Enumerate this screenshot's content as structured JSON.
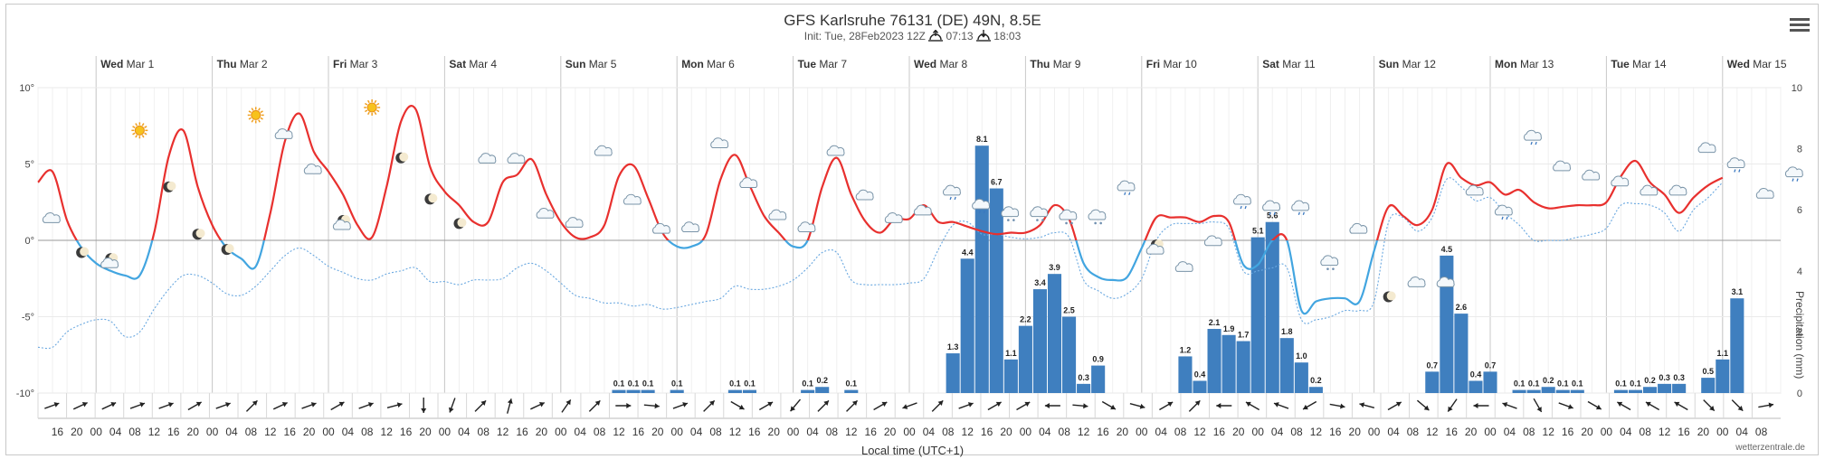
{
  "header": {
    "title": "GFS Karlsruhe 76131 (DE) 49N, 8.5E",
    "init": "Init: Tue, 28Feb2023 12Z",
    "sunrise": "07:13",
    "sunset": "18:03",
    "menu_icon": "hamburger-menu-icon"
  },
  "footer": {
    "xlabel": "Local time (UTC+1)",
    "credit": "wetterzentrale.de"
  },
  "chart_data": {
    "type": "line",
    "xlabel": "Local time (UTC+1)",
    "ylabel_right": "Precipitation (mm)",
    "day_labels": [
      {
        "day": "Wed",
        "date": "Mar 1"
      },
      {
        "day": "Thu",
        "date": "Mar 2"
      },
      {
        "day": "Fri",
        "date": "Mar 3"
      },
      {
        "day": "Sat",
        "date": "Mar 4"
      },
      {
        "day": "Sun",
        "date": "Mar 5"
      },
      {
        "day": "Mon",
        "date": "Mar 6"
      },
      {
        "day": "Tue",
        "date": "Mar 7"
      },
      {
        "day": "Wed",
        "date": "Mar 8"
      },
      {
        "day": "Thu",
        "date": "Mar 9"
      },
      {
        "day": "Fri",
        "date": "Mar 10"
      },
      {
        "day": "Sat",
        "date": "Mar 11"
      },
      {
        "day": "Sun",
        "date": "Mar 12"
      },
      {
        "day": "Mon",
        "date": "Mar 13"
      },
      {
        "day": "Tue",
        "date": "Mar 14"
      },
      {
        "day": "Wed",
        "date": "Mar 15"
      }
    ],
    "hour_ticks": [
      "16",
      "20",
      "00",
      "04",
      "08",
      "12",
      "16",
      "20",
      "00",
      "04",
      "08",
      "12",
      "16",
      "20",
      "00",
      "04",
      "08",
      "12",
      "16",
      "20",
      "00",
      "04",
      "08",
      "12",
      "16",
      "20",
      "00",
      "04",
      "08",
      "12",
      "16",
      "20",
      "00",
      "04",
      "08",
      "12",
      "16",
      "20",
      "00",
      "04",
      "08",
      "12",
      "16",
      "20",
      "00",
      "04",
      "08",
      "12",
      "16",
      "20",
      "00",
      "04",
      "08",
      "12",
      "16",
      "20",
      "00",
      "04",
      "08",
      "12",
      "16",
      "20",
      "00",
      "04",
      "08",
      "12",
      "16",
      "20",
      "00",
      "04",
      "08",
      "12",
      "16",
      "20",
      "00",
      "04",
      "08",
      "12",
      "16",
      "20",
      "00",
      "04",
      "08",
      "12",
      "16",
      "20",
      "00",
      "04",
      "08"
    ],
    "y_ticks_left": [
      "10°",
      "5°",
      "0°",
      "-5°",
      "-10°"
    ],
    "y_ticks_right": [
      "10",
      "8",
      "6",
      "4",
      "2",
      "0"
    ],
    "ylim_temp": [
      -10,
      10
    ],
    "ylim_precip": [
      0,
      10
    ],
    "x_start_hour": 12,
    "x_step_hours": 3,
    "series": [
      {
        "name": "",
        "kind": "temperature",
        "color": "#e8302e",
        "values": [
          3.8,
          4.5,
          1.3,
          -0.5,
          -1.5,
          -2.0,
          -2.3,
          -2.3,
          0.5,
          5.5,
          7.2,
          3.5,
          1.0,
          -0.5,
          -1.2,
          -1.7,
          1.8,
          6.5,
          8.3,
          5.8,
          4.5,
          3.0,
          1.0,
          0.2,
          3.5,
          7.8,
          8.6,
          4.8,
          3.2,
          2.3,
          1.2,
          1.2,
          3.8,
          4.3,
          5.3,
          3.0,
          1.2,
          0.2,
          0.2,
          1.0,
          4.2,
          4.9,
          2.8,
          0.5,
          -0.4,
          -0.4,
          0.4,
          4.0,
          5.6,
          3.6,
          1.6,
          0.5,
          -0.4,
          0.0,
          3.5,
          5.4,
          3.0,
          1.2,
          0.5,
          1.4,
          1.4,
          2.3,
          1.2,
          1.2,
          0.9,
          0.6,
          0.4,
          0.5,
          0.5,
          1.0,
          2.3,
          1.4,
          -1.5,
          -2.4,
          -2.6,
          -2.4,
          -0.5,
          1.5,
          1.5,
          1.5,
          1.2,
          1.6,
          1.2,
          -1.6,
          -1.6,
          0.0,
          0.0,
          -4.6,
          -4.0,
          -3.8,
          -3.8,
          -4.0,
          -0.7,
          2.2,
          1.6,
          1.0,
          2.0,
          5.0,
          4.1,
          3.6,
          3.8,
          3.0,
          3.3,
          2.5,
          2.1,
          2.2,
          2.3,
          2.3,
          2.5,
          4.2,
          5.2,
          3.8,
          3.0,
          1.8,
          2.8,
          3.6,
          4.1
        ]
      },
      {
        "name": "",
        "kind": "temperature_below_zero",
        "color": "#42a5e0"
      },
      {
        "name": "",
        "kind": "dewpoint",
        "color": "#6aa8e0",
        "style": "dotted",
        "values": [
          -7.0,
          -7.0,
          -6.0,
          -5.5,
          -5.2,
          -5.3,
          -6.3,
          -6.0,
          -4.5,
          -3.2,
          -2.3,
          -2.3,
          -2.8,
          -3.5,
          -3.6,
          -3.0,
          -2.0,
          -1.0,
          -0.5,
          -1.0,
          -1.7,
          -2.1,
          -2.5,
          -2.6,
          -2.2,
          -2.0,
          -1.8,
          -2.7,
          -2.7,
          -2.9,
          -2.6,
          -2.6,
          -2.5,
          -1.8,
          -1.5,
          -2.0,
          -2.8,
          -3.6,
          -3.8,
          -4.1,
          -4.1,
          -4.3,
          -4.2,
          -4.5,
          -4.4,
          -4.2,
          -4.0,
          -3.8,
          -3.0,
          -3.2,
          -3.2,
          -3.0,
          -2.6,
          -1.8,
          -0.8,
          -0.8,
          -2.6,
          -2.9,
          -2.9,
          -2.9,
          -2.8,
          -2.5,
          -0.6,
          1.0,
          1.2,
          0.4,
          0.4,
          0.2,
          0.1,
          0.2,
          0.5,
          0.2,
          -2.6,
          -3.3,
          -3.8,
          -3.5,
          -2.5,
          0.0,
          1.0,
          1.1,
          1.1,
          1.2,
          0.8,
          -2.0,
          -2.0,
          -1.8,
          -1.8,
          -5.2,
          -5.2,
          -5.0,
          -4.6,
          -4.6,
          -4.0,
          1.2,
          1.5,
          0.6,
          1.5,
          4.0,
          3.5,
          2.6,
          2.8,
          1.8,
          1.0,
          0.0,
          0.0,
          0.0,
          0.2,
          0.4,
          0.8,
          2.3,
          2.4,
          2.3,
          1.8,
          0.6,
          2.0,
          2.8,
          3.8
        ]
      },
      {
        "name": "",
        "kind": "precipitation_bars",
        "color": "#3f7fbf",
        "bars": [
          {
            "i": 40,
            "v": 0.1
          },
          {
            "i": 41,
            "v": 0.1
          },
          {
            "i": 42,
            "v": 0.1
          },
          {
            "i": 44,
            "v": 0.1
          },
          {
            "i": 48,
            "v": 0.1
          },
          {
            "i": 49,
            "v": 0.1
          },
          {
            "i": 53,
            "v": 0.1
          },
          {
            "i": 54,
            "v": 0.2
          },
          {
            "i": 56,
            "v": 0.1
          },
          {
            "i": 63,
            "v": 1.3
          },
          {
            "i": 64,
            "v": 4.4
          },
          {
            "i": 65,
            "v": 8.1
          },
          {
            "i": 66,
            "v": 6.7
          },
          {
            "i": 67,
            "v": 1.1
          },
          {
            "i": 68,
            "v": 2.2
          },
          {
            "i": 69,
            "v": 3.4
          },
          {
            "i": 70,
            "v": 3.9
          },
          {
            "i": 71,
            "v": 2.5
          },
          {
            "i": 72,
            "v": 0.3
          },
          {
            "i": 73,
            "v": 0.9
          },
          {
            "i": 79,
            "v": 1.2
          },
          {
            "i": 80,
            "v": 0.4
          },
          {
            "i": 81,
            "v": 2.1
          },
          {
            "i": 82,
            "v": 1.9
          },
          {
            "i": 83,
            "v": 1.7
          },
          {
            "i": 84,
            "v": 5.1
          },
          {
            "i": 85,
            "v": 5.6
          },
          {
            "i": 86,
            "v": 1.8
          },
          {
            "i": 87,
            "v": 1.0
          },
          {
            "i": 88,
            "v": 0.2
          },
          {
            "i": 96,
            "v": 0.7
          },
          {
            "i": 97,
            "v": 4.5
          },
          {
            "i": 98,
            "v": 2.6
          },
          {
            "i": 99,
            "v": 0.4
          },
          {
            "i": 100,
            "v": 0.7
          },
          {
            "i": 102,
            "v": 0.1
          },
          {
            "i": 103,
            "v": 0.1
          },
          {
            "i": 104,
            "v": 0.2
          },
          {
            "i": 105,
            "v": 0.1
          },
          {
            "i": 106,
            "v": 0.1
          },
          {
            "i": 109,
            "v": 0.1
          },
          {
            "i": 110,
            "v": 0.1
          },
          {
            "i": 111,
            "v": 0.2
          },
          {
            "i": 112,
            "v": 0.3
          },
          {
            "i": 113,
            "v": 0.3
          },
          {
            "i": 115,
            "v": 0.5
          },
          {
            "i": 116,
            "v": 1.1
          },
          {
            "i": 117,
            "v": 3.1
          }
        ]
      }
    ],
    "weather_icons": [
      {
        "i": 1,
        "icon": "cloud-icon",
        "y": 1.4
      },
      {
        "i": 3,
        "icon": "moon-icon",
        "y": -0.8
      },
      {
        "i": 5,
        "icon": "moon-cloud-icon",
        "y": -1.2
      },
      {
        "i": 7,
        "icon": "sun-icon",
        "y": 7.2
      },
      {
        "i": 9,
        "icon": "moon-icon",
        "y": 3.5
      },
      {
        "i": 11,
        "icon": "moon-icon",
        "y": 0.4
      },
      {
        "i": 13,
        "icon": "moon-icon",
        "y": -0.6
      },
      {
        "i": 15,
        "icon": "sun-icon",
        "y": 8.2
      },
      {
        "i": 17,
        "icon": "cloud-icon",
        "y": 6.9
      },
      {
        "i": 19,
        "icon": "cloud-icon",
        "y": 4.6
      },
      {
        "i": 21,
        "icon": "moon-cloud-icon",
        "y": 1.3
      },
      {
        "i": 23,
        "icon": "sun-icon",
        "y": 8.7
      },
      {
        "i": 25,
        "icon": "moon-icon",
        "y": 5.4
      },
      {
        "i": 27,
        "icon": "moon-icon",
        "y": 2.7
      },
      {
        "i": 29,
        "icon": "moon-icon",
        "y": 1.1
      },
      {
        "i": 31,
        "icon": "cloud-icon",
        "y": 5.3
      },
      {
        "i": 33,
        "icon": "cloud-icon",
        "y": 5.3
      },
      {
        "i": 35,
        "icon": "cloud-icon",
        "y": 1.7
      },
      {
        "i": 37,
        "icon": "cloud-icon",
        "y": 1.1
      },
      {
        "i": 39,
        "icon": "cloud-icon",
        "y": 5.8
      },
      {
        "i": 41,
        "icon": "cloud-icon",
        "y": 2.6
      },
      {
        "i": 43,
        "icon": "cloud-icon",
        "y": 0.7
      },
      {
        "i": 45,
        "icon": "cloud-icon",
        "y": 0.8
      },
      {
        "i": 47,
        "icon": "cloud-icon",
        "y": 6.3
      },
      {
        "i": 49,
        "icon": "cloud-icon",
        "y": 3.7
      },
      {
        "i": 51,
        "icon": "cloud-icon",
        "y": 1.6
      },
      {
        "i": 53,
        "icon": "cloud-icon",
        "y": 0.8
      },
      {
        "i": 55,
        "icon": "cloud-icon",
        "y": 5.8
      },
      {
        "i": 57,
        "icon": "cloud-icon",
        "y": 2.9
      },
      {
        "i": 59,
        "icon": "cloud-icon",
        "y": 1.4
      },
      {
        "i": 61,
        "icon": "cloud-icon",
        "y": 1.9
      },
      {
        "i": 63,
        "icon": "cloud-rain-icon",
        "y": 3.2
      },
      {
        "i": 65,
        "icon": "cloud-rain-icon",
        "y": 2.3
      },
      {
        "i": 67,
        "icon": "cloud-snow-icon",
        "y": 1.8
      },
      {
        "i": 69,
        "icon": "cloud-snow-icon",
        "y": 1.8
      },
      {
        "i": 71,
        "icon": "cloud-snow-icon",
        "y": 1.6
      },
      {
        "i": 73,
        "icon": "cloud-snow-icon",
        "y": 1.6
      },
      {
        "i": 75,
        "icon": "cloud-rain-icon",
        "y": 3.5
      },
      {
        "i": 77,
        "icon": "moon-cloud-icon",
        "y": -0.3
      },
      {
        "i": 79,
        "icon": "cloud-icon",
        "y": -1.8
      },
      {
        "i": 81,
        "icon": "cloud-icon",
        "y": -0.1
      },
      {
        "i": 83,
        "icon": "cloud-rain-icon",
        "y": 2.6
      },
      {
        "i": 85,
        "icon": "cloud-rain-icon",
        "y": 2.2
      },
      {
        "i": 87,
        "icon": "cloud-rain-icon",
        "y": 2.2
      },
      {
        "i": 89,
        "icon": "cloud-snow-icon",
        "y": -1.4
      },
      {
        "i": 91,
        "icon": "cloud-icon",
        "y": 0.7
      },
      {
        "i": 93,
        "icon": "moon-icon",
        "y": -3.7
      },
      {
        "i": 95,
        "icon": "cloud-icon",
        "y": -2.8
      },
      {
        "i": 97,
        "icon": "cloud-icon",
        "y": -2.8
      },
      {
        "i": 99,
        "icon": "cloud-icon",
        "y": 3.2
      },
      {
        "i": 101,
        "icon": "cloud-rain-icon",
        "y": 1.9
      },
      {
        "i": 103,
        "icon": "cloud-rain-icon",
        "y": 6.8
      },
      {
        "i": 105,
        "icon": "cloud-icon",
        "y": 4.8
      },
      {
        "i": 107,
        "icon": "cloud-icon",
        "y": 4.2
      },
      {
        "i": 109,
        "icon": "cloud-icon",
        "y": 3.8
      },
      {
        "i": 111,
        "icon": "cloud-icon",
        "y": 3.2
      },
      {
        "i": 113,
        "icon": "cloud-icon",
        "y": 3.2
      },
      {
        "i": 115,
        "icon": "cloud-icon",
        "y": 6.0
      },
      {
        "i": 117,
        "icon": "cloud-rain-icon",
        "y": 5.0
      },
      {
        "i": 119,
        "icon": "cloud-icon",
        "y": 3.0
      },
      {
        "i": 121,
        "icon": "cloud-rain-icon",
        "y": 4.4
      }
    ],
    "wind_arrows_deg": [
      70,
      65,
      65,
      70,
      70,
      60,
      70,
      45,
      65,
      70,
      60,
      70,
      75,
      180,
      200,
      45,
      15,
      65,
      35,
      45,
      90,
      95,
      70,
      45,
      120,
      60,
      220,
      45,
      45,
      60,
      250,
      45,
      70,
      60,
      60,
      270,
      95,
      120,
      105,
      60,
      45,
      270,
      300,
      290,
      240,
      100,
      285,
      60,
      130,
      215,
      270,
      290,
      150,
      110,
      120,
      300,
      300,
      300,
      135,
      135,
      80
    ]
  }
}
